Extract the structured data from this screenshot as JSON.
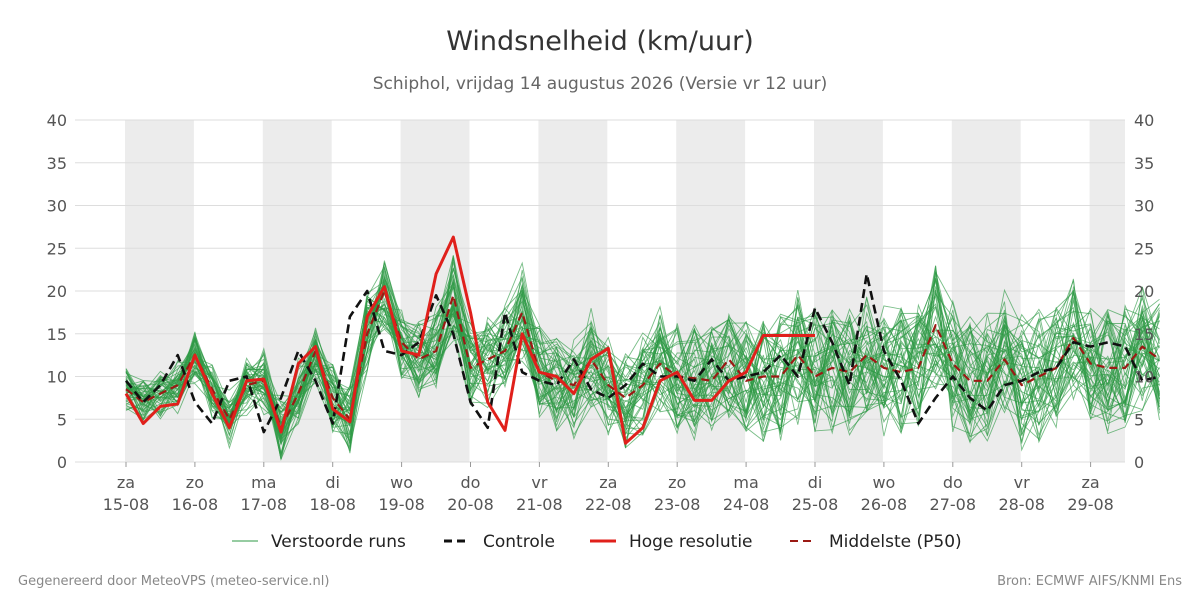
{
  "chart_data": {
    "type": "line",
    "title": "Windsnelheid (km/uur)",
    "subtitle": "Schiphol, vrijdag 14 augustus 2026 (Versie vr 12 uur)",
    "ylim": [
      0,
      40
    ],
    "yticks": [
      0,
      5,
      10,
      15,
      20,
      25,
      30,
      35,
      40
    ],
    "x_start": "14-08 18:00",
    "x_end": "29-08 12:00",
    "day_ticks": [
      {
        "day": "za",
        "date": "15-08"
      },
      {
        "day": "zo",
        "date": "16-08"
      },
      {
        "day": "ma",
        "date": "17-08"
      },
      {
        "day": "di",
        "date": "18-08"
      },
      {
        "day": "wo",
        "date": "19-08"
      },
      {
        "day": "do",
        "date": "20-08"
      },
      {
        "day": "vr",
        "date": "21-08"
      },
      {
        "day": "za",
        "date": "22-08"
      },
      {
        "day": "zo",
        "date": "23-08"
      },
      {
        "day": "ma",
        "date": "24-08"
      },
      {
        "day": "di",
        "date": "25-08"
      },
      {
        "day": "wo",
        "date": "26-08"
      },
      {
        "day": "do",
        "date": "27-08"
      },
      {
        "day": "vr",
        "date": "28-08"
      },
      {
        "day": "za",
        "date": "29-08"
      }
    ],
    "grid": true,
    "legend_position": "bottom",
    "colors": {
      "ensemble": "#2e9a45",
      "control": "#111111",
      "hires": "#e0201b",
      "median": "#9b1a14",
      "band": "#ececec",
      "gridline": "#dddddd"
    },
    "series": [
      {
        "name": "Controle",
        "style": "dashed",
        "x_days": [
          0,
          0.25,
          0.5,
          0.75,
          1,
          1.25,
          1.5,
          1.75,
          2,
          2.25,
          2.5,
          2.75,
          3,
          3.25,
          3.5,
          3.75,
          4,
          4.25,
          4.5,
          4.75,
          5,
          5.25,
          5.5,
          5.75,
          6,
          6.25,
          6.5,
          6.75,
          7,
          7.25,
          7.5,
          7.75,
          8,
          8.25,
          8.5,
          8.75,
          9,
          9.25,
          9.5,
          9.75,
          10,
          10.25,
          10.5,
          10.75,
          11,
          11.25,
          11.5,
          11.75,
          12,
          12.25,
          12.5,
          12.75,
          13,
          13.25,
          13.5,
          13.75,
          14,
          14.25,
          14.5,
          14.75,
          15
        ],
        "values": [
          9.5,
          7,
          9,
          12.5,
          7,
          4.5,
          9.5,
          10,
          3.5,
          7.5,
          13,
          9.5,
          4.5,
          17,
          20,
          13,
          12.5,
          14,
          19.5,
          15,
          7,
          4,
          17.5,
          10.5,
          9.5,
          9,
          12,
          8.5,
          7.5,
          9,
          11.5,
          10,
          10,
          9.5,
          12,
          9.5,
          10,
          10.5,
          12.5,
          10,
          18,
          14,
          9,
          22,
          13,
          9.5,
          4.5,
          7.5,
          10,
          7.5,
          6,
          9,
          9.5,
          10.5,
          11,
          14,
          13.5,
          14,
          13.5,
          9.5,
          10
        ]
      },
      {
        "name": "Hoge resolutie",
        "style": "solid",
        "x_days": [
          0,
          0.25,
          0.5,
          0.75,
          1,
          1.25,
          1.5,
          1.75,
          2,
          2.25,
          2.5,
          2.75,
          3,
          3.25,
          3.5,
          3.75,
          4,
          4.25,
          4.5,
          4.75,
          5,
          5.25,
          5.5,
          5.75,
          6,
          6.25,
          6.5,
          6.75,
          7,
          7.25,
          7.5,
          7.75,
          8,
          8.25,
          8.5,
          8.75,
          9,
          9.25,
          9.5,
          9.75,
          10
        ],
        "values": [
          8,
          4.5,
          6.5,
          6.8,
          12.5,
          8,
          4,
          9.5,
          9.7,
          3.5,
          11.5,
          13.5,
          6.2,
          4.7,
          17,
          20.5,
          13,
          12.5,
          22,
          26.3,
          17.5,
          7,
          3.7,
          15,
          10.5,
          10,
          8,
          12,
          13.3,
          2.2,
          4,
          9.5,
          10.5,
          7.2,
          7.2,
          9.5,
          10.5,
          14.8,
          14.8,
          14.8,
          14.8
        ]
      },
      {
        "name": "Middelste (P50)",
        "style": "dashed",
        "x_days": [
          0,
          0.25,
          0.5,
          0.75,
          1,
          1.25,
          1.5,
          1.75,
          2,
          2.25,
          2.5,
          2.75,
          3,
          3.25,
          3.5,
          3.75,
          4,
          4.25,
          4.5,
          4.75,
          5,
          5.25,
          5.5,
          5.75,
          6,
          6.25,
          6.5,
          6.75,
          7,
          7.25,
          7.5,
          7.75,
          8,
          8.25,
          8.5,
          8.75,
          9,
          9.25,
          9.5,
          9.75,
          10,
          10.25,
          10.5,
          10.75,
          11,
          11.25,
          11.5,
          11.75,
          12,
          12.25,
          12.5,
          12.75,
          13,
          13.25,
          13.5,
          13.75,
          14,
          14.25,
          14.5,
          14.75,
          15
        ],
        "values": [
          8.5,
          7,
          8,
          9,
          12.5,
          8.5,
          5,
          9,
          9.5,
          4,
          8,
          13,
          7.5,
          5,
          15,
          20,
          14,
          12,
          13,
          19.5,
          11,
          12,
          13,
          17.5,
          10.5,
          9.5,
          9,
          12,
          9,
          7.5,
          9,
          11.5,
          10,
          9.8,
          9.5,
          12,
          9.5,
          10,
          10,
          12.5,
          10,
          11,
          10.5,
          12.5,
          11,
          10.5,
          11,
          16,
          11.5,
          9.5,
          9.5,
          12,
          9,
          10,
          11,
          14.5,
          11.5,
          11,
          11,
          13.5,
          12
        ]
      }
    ],
    "ensemble": {
      "name": "Verstoorde runs",
      "members": 50
    }
  },
  "legend": [
    {
      "label": "Verstoorde runs",
      "key": "ensemble"
    },
    {
      "label": "Controle",
      "key": "control"
    },
    {
      "label": "Hoge resolutie",
      "key": "hires"
    },
    {
      "label": "Middelste (P50)",
      "key": "median"
    }
  ],
  "footer": {
    "left": "Gegenereerd door MeteoVPS (meteo-service.nl)",
    "right": "Bron: ECMWF AIFS/KNMI Ens"
  }
}
